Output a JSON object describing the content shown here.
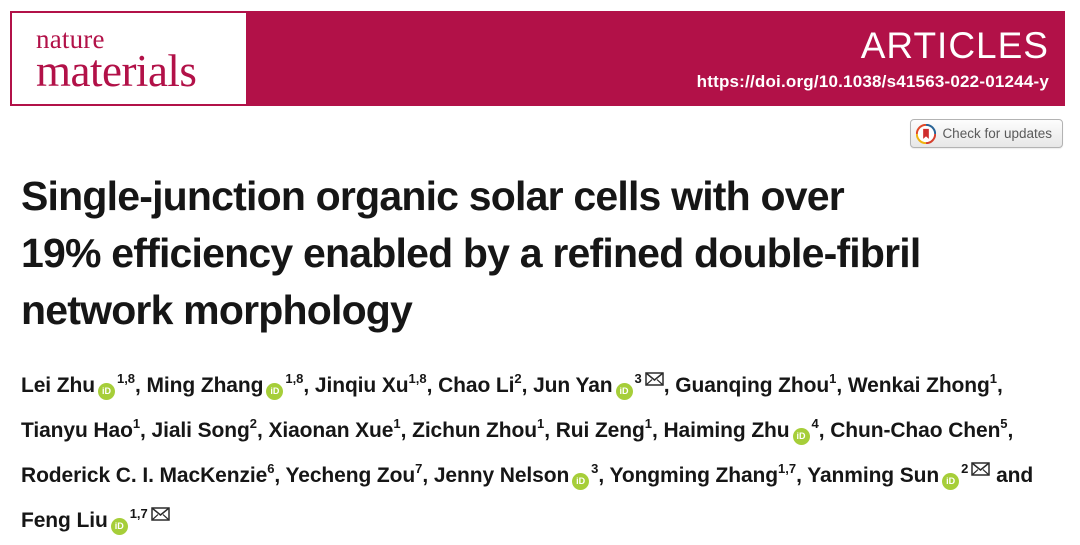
{
  "journal": {
    "name_line1": "nature",
    "name_line2": "materials"
  },
  "header": {
    "article_type": "ARTICLES",
    "doi": "https://doi.org/10.1038/s41563-022-01244-y"
  },
  "badge": {
    "label": "Check for updates",
    "icon": "crossmark-logo"
  },
  "title_lines": [
    "Single-junction organic solar cells with over",
    "19% efficiency enabled by a refined double-fibril",
    "network morphology"
  ],
  "colors": {
    "brand_crimson": "#b21148",
    "orcid_green": "#a6ce39",
    "text_dark": "#161616",
    "badge_text": "#5a5a5a"
  },
  "icons": {
    "orcid": "orcid-id-icon",
    "email": "envelope-icon"
  },
  "authors": {
    "lines": [
      [
        {
          "name": "Lei Zhu",
          "orcid": true,
          "sup": "1,8",
          "trail": ", "
        },
        {
          "name": "Ming Zhang",
          "orcid": true,
          "sup": "1,8",
          "trail": ", "
        },
        {
          "name": "Jinqiu Xu",
          "sup": "1,8",
          "trail": ", "
        },
        {
          "name": "Chao Li",
          "sup": "2",
          "trail": ", "
        },
        {
          "name": "Jun Yan",
          "orcid": true,
          "sup": "3",
          "email": true,
          "trail": ", "
        },
        {
          "name": "Guanqing Zhou",
          "sup": "1",
          "trail": ", "
        },
        {
          "name": "Wenkai Zhong",
          "sup": "1",
          "trail": ","
        }
      ],
      [
        {
          "name": "Tianyu Hao",
          "sup": "1",
          "trail": ", "
        },
        {
          "name": "Jiali Song",
          "sup": "2",
          "trail": ", "
        },
        {
          "name": "Xiaonan Xue",
          "sup": "1",
          "trail": ", "
        },
        {
          "name": "Zichun Zhou",
          "sup": "1",
          "trail": ", "
        },
        {
          "name": "Rui Zeng",
          "sup": "1",
          "trail": ", "
        },
        {
          "name": "Haiming Zhu",
          "orcid": true,
          "sup": "4",
          "trail": ", "
        },
        {
          "name": "Chun-Chao Chen",
          "sup": "5",
          "trail": ","
        }
      ],
      [
        {
          "name": "Roderick C. I. MacKenzie",
          "sup": "6",
          "trail": ", "
        },
        {
          "name": "Yecheng Zou",
          "sup": "7",
          "trail": ", "
        },
        {
          "name": "Jenny Nelson",
          "orcid": true,
          "sup": "3",
          "trail": ", "
        },
        {
          "name": "Yongming Zhang",
          "sup": "1,7",
          "trail": ", "
        },
        {
          "name": "Yanming Sun",
          "orcid": true,
          "sup": "2",
          "email": true,
          "trail": " and"
        }
      ],
      [
        {
          "name": "Feng Liu",
          "orcid": true,
          "sup": "1,7",
          "email": true,
          "trail": ""
        }
      ]
    ]
  }
}
